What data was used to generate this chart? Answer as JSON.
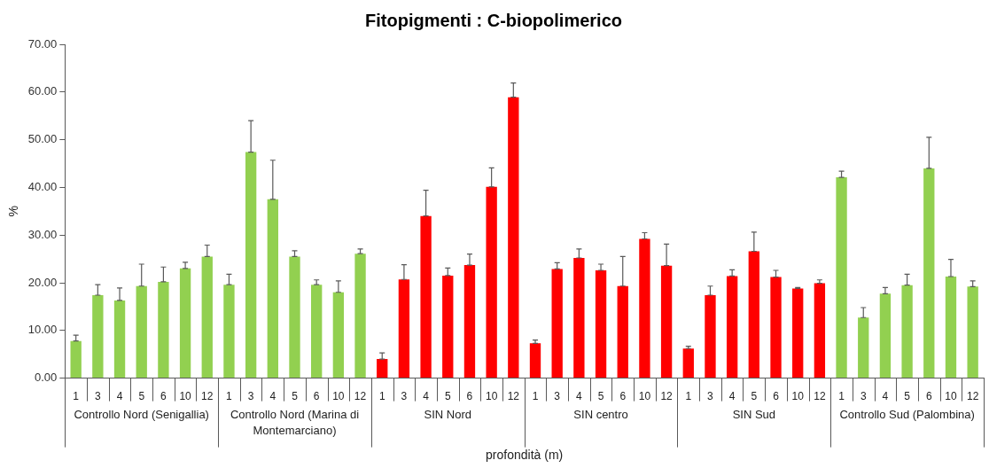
{
  "chart_data": {
    "type": "bar",
    "title": "Fitopigmenti : C-biopolimerico",
    "xlabel": "profondità (m)",
    "ylabel": "%",
    "categories": [
      "1",
      "3",
      "4",
      "5",
      "6",
      "10",
      "12",
      "1",
      "3",
      "4",
      "5",
      "6",
      "10",
      "12",
      "1",
      "3",
      "4",
      "5",
      "6",
      "10",
      "12",
      "1",
      "3",
      "4",
      "5",
      "6",
      "10",
      "12",
      "1",
      "3",
      "4",
      "5",
      "6",
      "10",
      "12",
      "1",
      "3",
      "4",
      "5",
      "6",
      "10",
      "12"
    ],
    "values": [
      7.8,
      17.4,
      16.3,
      19.3,
      20.2,
      23.0,
      25.5,
      19.6,
      47.4,
      37.5,
      25.5,
      19.6,
      18.0,
      26.1,
      4.0,
      20.7,
      34.0,
      21.5,
      23.7,
      40.1,
      58.9,
      7.3,
      22.9,
      25.2,
      22.6,
      19.3,
      29.2,
      23.6,
      6.2,
      17.4,
      21.4,
      26.6,
      21.2,
      18.8,
      19.9,
      42.1,
      12.7,
      17.7,
      19.5,
      44.0,
      21.3,
      19.2
    ],
    "errors": [
      [
        7.8,
        9.0
      ],
      [
        17.4,
        19.6
      ],
      [
        16.3,
        18.9
      ],
      [
        19.3,
        23.9
      ],
      [
        20.2,
        23.3
      ],
      [
        23.0,
        24.3
      ],
      [
        25.5,
        27.9
      ],
      [
        19.6,
        21.8
      ],
      [
        47.4,
        54.0
      ],
      [
        37.5,
        45.7
      ],
      [
        25.5,
        26.7
      ],
      [
        19.6,
        20.6
      ],
      [
        18.0,
        20.4
      ],
      [
        26.1,
        27.1
      ],
      [
        4.0,
        5.3
      ],
      [
        20.7,
        23.8
      ],
      [
        34.0,
        39.4
      ],
      [
        21.5,
        23.1
      ],
      [
        23.7,
        26.0
      ],
      [
        40.1,
        44.1
      ],
      [
        58.9,
        61.9
      ],
      [
        7.3,
        8.0
      ],
      [
        22.9,
        24.2
      ],
      [
        25.2,
        27.1
      ],
      [
        22.6,
        23.9
      ],
      [
        19.3,
        25.5
      ],
      [
        29.2,
        30.5
      ],
      [
        23.6,
        28.1
      ],
      [
        6.2,
        6.7
      ],
      [
        17.4,
        19.3
      ],
      [
        21.4,
        22.7
      ],
      [
        26.6,
        30.6
      ],
      [
        21.2,
        22.6
      ],
      [
        18.8,
        19.0
      ],
      [
        19.9,
        20.6
      ],
      [
        42.1,
        43.4
      ],
      [
        12.7,
        14.8
      ],
      [
        17.7,
        19.0
      ],
      [
        19.5,
        21.8
      ],
      [
        44.0,
        50.5
      ],
      [
        21.3,
        24.9
      ],
      [
        19.2,
        20.4
      ]
    ],
    "colors": [
      "#92d050",
      "#92d050",
      "#92d050",
      "#92d050",
      "#92d050",
      "#92d050",
      "#92d050",
      "#92d050",
      "#92d050",
      "#92d050",
      "#92d050",
      "#92d050",
      "#92d050",
      "#92d050",
      "#ff0000",
      "#ff0000",
      "#ff0000",
      "#ff0000",
      "#ff0000",
      "#ff0000",
      "#ff0000",
      "#ff0000",
      "#ff0000",
      "#ff0000",
      "#ff0000",
      "#ff0000",
      "#ff0000",
      "#ff0000",
      "#ff0000",
      "#ff0000",
      "#ff0000",
      "#ff0000",
      "#ff0000",
      "#ff0000",
      "#ff0000",
      "#92d050",
      "#92d050",
      "#92d050",
      "#92d050",
      "#92d050",
      "#92d050",
      "#92d050"
    ],
    "ylim": [
      0,
      70
    ],
    "yticks": [
      {
        "value": 0,
        "label": "0.00"
      },
      {
        "value": 10,
        "label": "10.00"
      },
      {
        "value": 20,
        "label": "20.00"
      },
      {
        "value": 30,
        "label": "30.00"
      },
      {
        "value": 40,
        "label": "40.00"
      },
      {
        "value": 50,
        "label": "50.00"
      },
      {
        "value": 60,
        "label": "60.00"
      },
      {
        "value": 70,
        "label": "70.00"
      }
    ],
    "annotations": [
      "Controllo Nord (Senigallia)",
      "Controllo Nord (Marina di Montemarciano)",
      "SIN Nord",
      "SIN centro",
      "SIN Sud",
      "Controllo Sud (Palombina)"
    ]
  }
}
